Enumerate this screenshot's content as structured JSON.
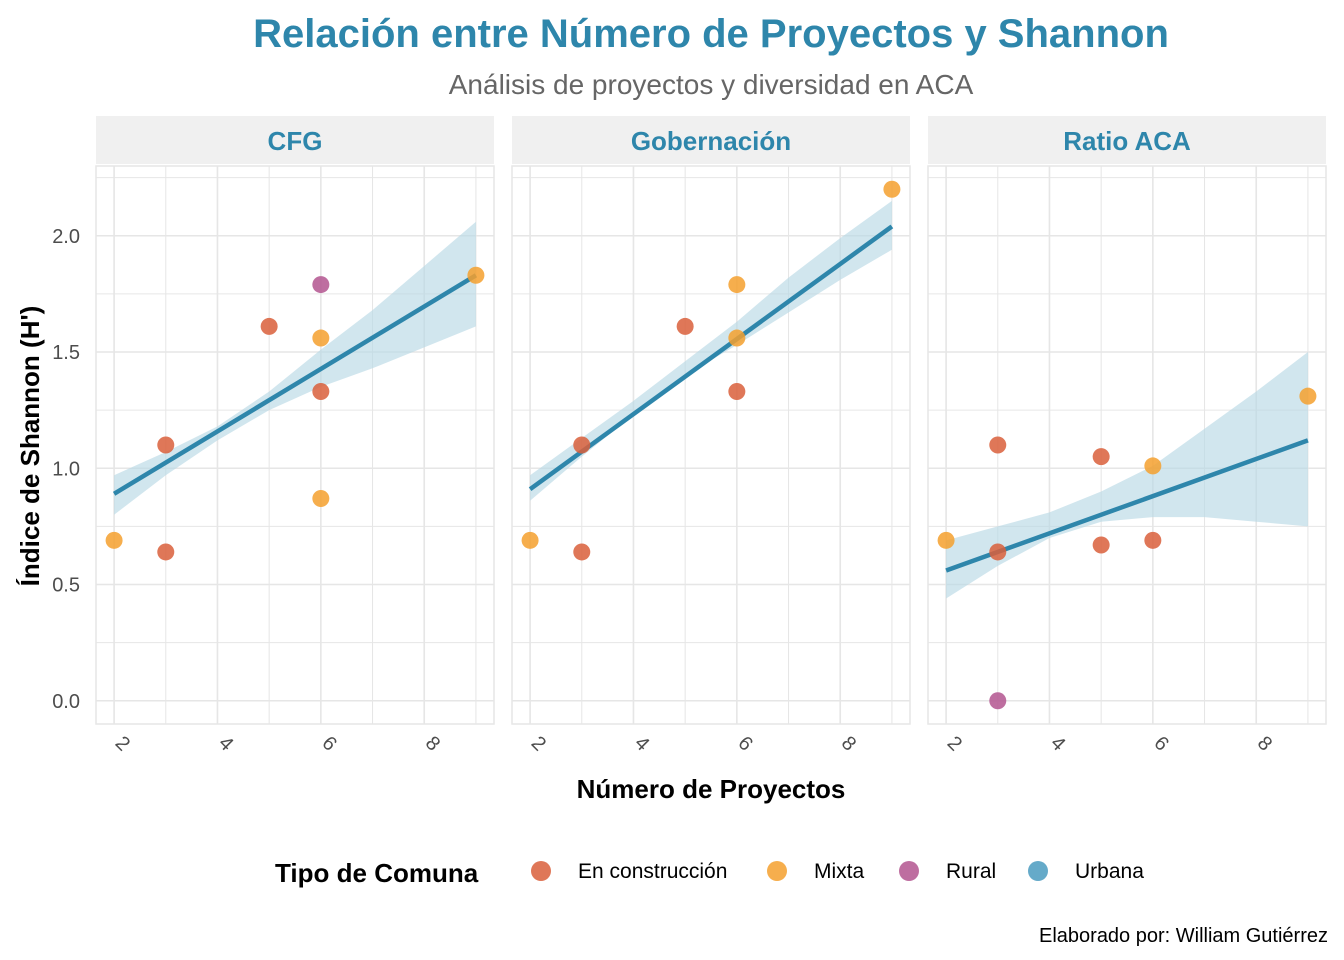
{
  "title": "Relación entre Número de Proyectos y Shannon",
  "subtitle": "Análisis de proyectos y diversidad en ACA",
  "caption": "Elaborado por: William Gutiérrez",
  "colors": {
    "title": "#2E86AB",
    "subtitle": "#666666",
    "strip_bg": "#F0F0F0",
    "grid": "#E6E6E6",
    "ribbon": "#B8D8E5",
    "trend_line": "#2E86AB",
    "axis_text": "#4D4D4D"
  },
  "chart_data": {
    "type": "scatter",
    "xlabel": "Número de Proyectos",
    "ylabel": "Índice de Shannon (H')",
    "xlim": [
      1.65,
      9.35
    ],
    "ylim": [
      -0.1,
      2.3
    ],
    "x_ticks": [
      {
        "value": 2,
        "label": "2"
      },
      {
        "value": 4,
        "label": "4"
      },
      {
        "value": 6,
        "label": "6"
      },
      {
        "value": 8,
        "label": "8"
      }
    ],
    "y_ticks": [
      {
        "value": 0.0,
        "label": "0.0"
      },
      {
        "value": 0.5,
        "label": "0.5"
      },
      {
        "value": 1.0,
        "label": "1.0"
      },
      {
        "value": 1.5,
        "label": "1.5"
      },
      {
        "value": 2.0,
        "label": "2.0"
      }
    ],
    "legend": {
      "title": "Tipo de Comuna",
      "position": "bottom",
      "items": [
        {
          "key": "construccion",
          "label": "En construcción",
          "color": "#D95F3B"
        },
        {
          "key": "mixta",
          "label": "Mixta",
          "color": "#F5A02E"
        },
        {
          "key": "rural",
          "label": "Rural",
          "color": "#B3558F"
        },
        {
          "key": "urbana",
          "label": "Urbana",
          "color": "#4A9BBF"
        }
      ]
    },
    "facets": [
      {
        "label": "CFG",
        "trend": {
          "x": [
            2,
            9
          ],
          "y": [
            0.89,
            1.83
          ]
        },
        "ribbon": {
          "x": [
            2,
            3,
            4,
            5,
            6,
            7,
            8,
            9
          ],
          "lower": [
            0.8,
            0.97,
            1.12,
            1.25,
            1.35,
            1.43,
            1.52,
            1.61
          ],
          "upper": [
            0.97,
            1.07,
            1.18,
            1.33,
            1.51,
            1.68,
            1.87,
            2.06
          ]
        },
        "points": [
          {
            "x": 2,
            "y": 0.69,
            "type": "mixta"
          },
          {
            "x": 3,
            "y": 0.64,
            "type": "construccion"
          },
          {
            "x": 3,
            "y": 1.1,
            "type": "construccion"
          },
          {
            "x": 5,
            "y": 1.61,
            "type": "construccion"
          },
          {
            "x": 6,
            "y": 1.79,
            "type": "rural"
          },
          {
            "x": 6,
            "y": 1.56,
            "type": "mixta"
          },
          {
            "x": 6,
            "y": 1.33,
            "type": "construccion"
          },
          {
            "x": 6,
            "y": 0.87,
            "type": "mixta"
          },
          {
            "x": 9,
            "y": 1.83,
            "type": "mixta"
          }
        ]
      },
      {
        "label": "Gobernación",
        "trend": {
          "x": [
            2,
            9
          ],
          "y": [
            0.91,
            2.04
          ]
        },
        "ribbon": {
          "x": [
            2,
            3,
            4,
            5,
            6,
            7,
            8,
            9
          ],
          "lower": [
            0.86,
            1.05,
            1.23,
            1.4,
            1.53,
            1.67,
            1.81,
            1.94
          ],
          "upper": [
            0.97,
            1.13,
            1.29,
            1.46,
            1.63,
            1.82,
            1.99,
            2.15
          ]
        },
        "points": [
          {
            "x": 2,
            "y": 0.69,
            "type": "mixta"
          },
          {
            "x": 3,
            "y": 0.64,
            "type": "construccion"
          },
          {
            "x": 3,
            "y": 1.1,
            "type": "construccion"
          },
          {
            "x": 5,
            "y": 1.61,
            "type": "construccion"
          },
          {
            "x": 6,
            "y": 1.79,
            "type": "mixta"
          },
          {
            "x": 6,
            "y": 1.56,
            "type": "mixta"
          },
          {
            "x": 6,
            "y": 1.33,
            "type": "construccion"
          },
          {
            "x": 9,
            "y": 2.2,
            "type": "mixta"
          }
        ]
      },
      {
        "label": "Ratio ACA",
        "trend": {
          "x": [
            2,
            9
          ],
          "y": [
            0.56,
            1.12
          ]
        },
        "ribbon": {
          "x": [
            2,
            3,
            4,
            5,
            6,
            7,
            8,
            9
          ],
          "lower": [
            0.44,
            0.58,
            0.7,
            0.77,
            0.79,
            0.79,
            0.77,
            0.75
          ],
          "upper": [
            0.69,
            0.75,
            0.81,
            0.9,
            1.01,
            1.17,
            1.33,
            1.5
          ]
        },
        "points": [
          {
            "x": 2,
            "y": 0.69,
            "type": "mixta"
          },
          {
            "x": 3,
            "y": 1.1,
            "type": "construccion"
          },
          {
            "x": 3,
            "y": 0.64,
            "type": "construccion"
          },
          {
            "x": 3,
            "y": 0.0,
            "type": "rural"
          },
          {
            "x": 5,
            "y": 1.05,
            "type": "construccion"
          },
          {
            "x": 5,
            "y": 0.67,
            "type": "construccion"
          },
          {
            "x": 6,
            "y": 1.01,
            "type": "mixta"
          },
          {
            "x": 6,
            "y": 0.69,
            "type": "construccion"
          },
          {
            "x": 9,
            "y": 1.31,
            "type": "mixta"
          }
        ]
      }
    ]
  }
}
